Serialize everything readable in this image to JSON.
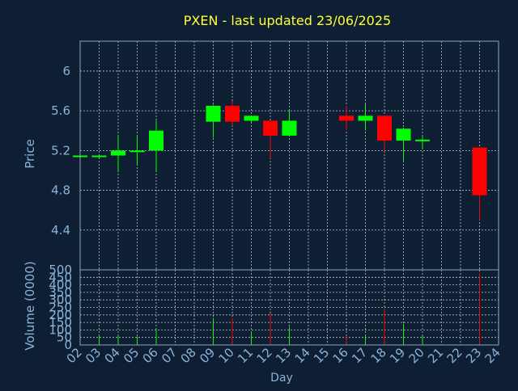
{
  "colors": {
    "background": "#0f1f33",
    "frame": "#8aa6c2",
    "grid": "#b8c4d0",
    "title": "#ffff33",
    "label": "#8ab4d8",
    "up": "#00ff00",
    "down": "#ff0000"
  },
  "chart_data": {
    "type": "candlestick",
    "title": "PXEN - last updated 23/06/2025",
    "xlabel": "Day",
    "x_ticks": [
      "02",
      "03",
      "04",
      "05",
      "06",
      "07",
      "08",
      "09",
      "10",
      "11",
      "12",
      "13",
      "14",
      "15",
      "16",
      "17",
      "18",
      "19",
      "20",
      "21",
      "22",
      "23",
      "24"
    ],
    "xlim": [
      2,
      24
    ],
    "grid": true,
    "price": {
      "ylabel": "Price",
      "ylim": [
        4.0,
        6.3
      ],
      "y_ticks": [
        "4.4",
        "4.8",
        "5.2",
        "5.6",
        "6"
      ],
      "candles": [
        {
          "day": 2,
          "open": 5.14,
          "high": 5.15,
          "low": 5.13,
          "close": 5.15
        },
        {
          "day": 3,
          "open": 5.14,
          "high": 5.16,
          "low": 5.13,
          "close": 5.15
        },
        {
          "day": 4,
          "open": 5.15,
          "high": 5.36,
          "low": 5.0,
          "close": 5.2
        },
        {
          "day": 5,
          "open": 5.19,
          "high": 5.35,
          "low": 5.05,
          "close": 5.2
        },
        {
          "day": 6,
          "open": 5.2,
          "high": 5.5,
          "low": 5.0,
          "close": 5.4
        },
        {
          "day": 9,
          "open": 5.49,
          "high": 5.66,
          "low": 5.33,
          "close": 5.65
        },
        {
          "day": 10,
          "open": 5.65,
          "high": 5.7,
          "low": 5.45,
          "close": 5.49
        },
        {
          "day": 11,
          "open": 5.5,
          "high": 5.55,
          "low": 5.48,
          "close": 5.55
        },
        {
          "day": 12,
          "open": 5.5,
          "high": 5.5,
          "low": 5.12,
          "close": 5.35
        },
        {
          "day": 13,
          "open": 5.35,
          "high": 5.6,
          "low": 5.35,
          "close": 5.5
        },
        {
          "day": 16,
          "open": 5.55,
          "high": 5.65,
          "low": 5.4,
          "close": 5.5
        },
        {
          "day": 17,
          "open": 5.5,
          "high": 5.67,
          "low": 5.4,
          "close": 5.55
        },
        {
          "day": 18,
          "open": 5.55,
          "high": 5.55,
          "low": 5.19,
          "close": 5.3
        },
        {
          "day": 19,
          "open": 5.3,
          "high": 5.43,
          "low": 5.1,
          "close": 5.42
        },
        {
          "day": 20,
          "open": 5.3,
          "high": 5.35,
          "low": 5.22,
          "close": 5.31
        },
        {
          "day": 23,
          "open": 5.23,
          "high": 5.23,
          "low": 4.5,
          "close": 4.75
        }
      ]
    },
    "volume": {
      "ylabel": "Volume (0000)",
      "ylim": [
        0,
        500
      ],
      "y_ticks": [
        "0",
        "50",
        "100",
        "150",
        "200",
        "250",
        "300",
        "350",
        "400",
        "450",
        "500"
      ],
      "bars": [
        {
          "day": 3,
          "value": 70,
          "dir": "up"
        },
        {
          "day": 4,
          "value": 70,
          "dir": "up"
        },
        {
          "day": 5,
          "value": 55,
          "dir": "up"
        },
        {
          "day": 6,
          "value": 100,
          "dir": "up"
        },
        {
          "day": 9,
          "value": 180,
          "dir": "up"
        },
        {
          "day": 10,
          "value": 180,
          "dir": "down"
        },
        {
          "day": 11,
          "value": 90,
          "dir": "up"
        },
        {
          "day": 12,
          "value": 210,
          "dir": "down"
        },
        {
          "day": 13,
          "value": 120,
          "dir": "up"
        },
        {
          "day": 16,
          "value": 60,
          "dir": "down"
        },
        {
          "day": 17,
          "value": 70,
          "dir": "up"
        },
        {
          "day": 18,
          "value": 240,
          "dir": "down"
        },
        {
          "day": 19,
          "value": 140,
          "dir": "up"
        },
        {
          "day": 20,
          "value": 60,
          "dir": "up"
        },
        {
          "day": 23,
          "value": 480,
          "dir": "down"
        }
      ]
    }
  }
}
